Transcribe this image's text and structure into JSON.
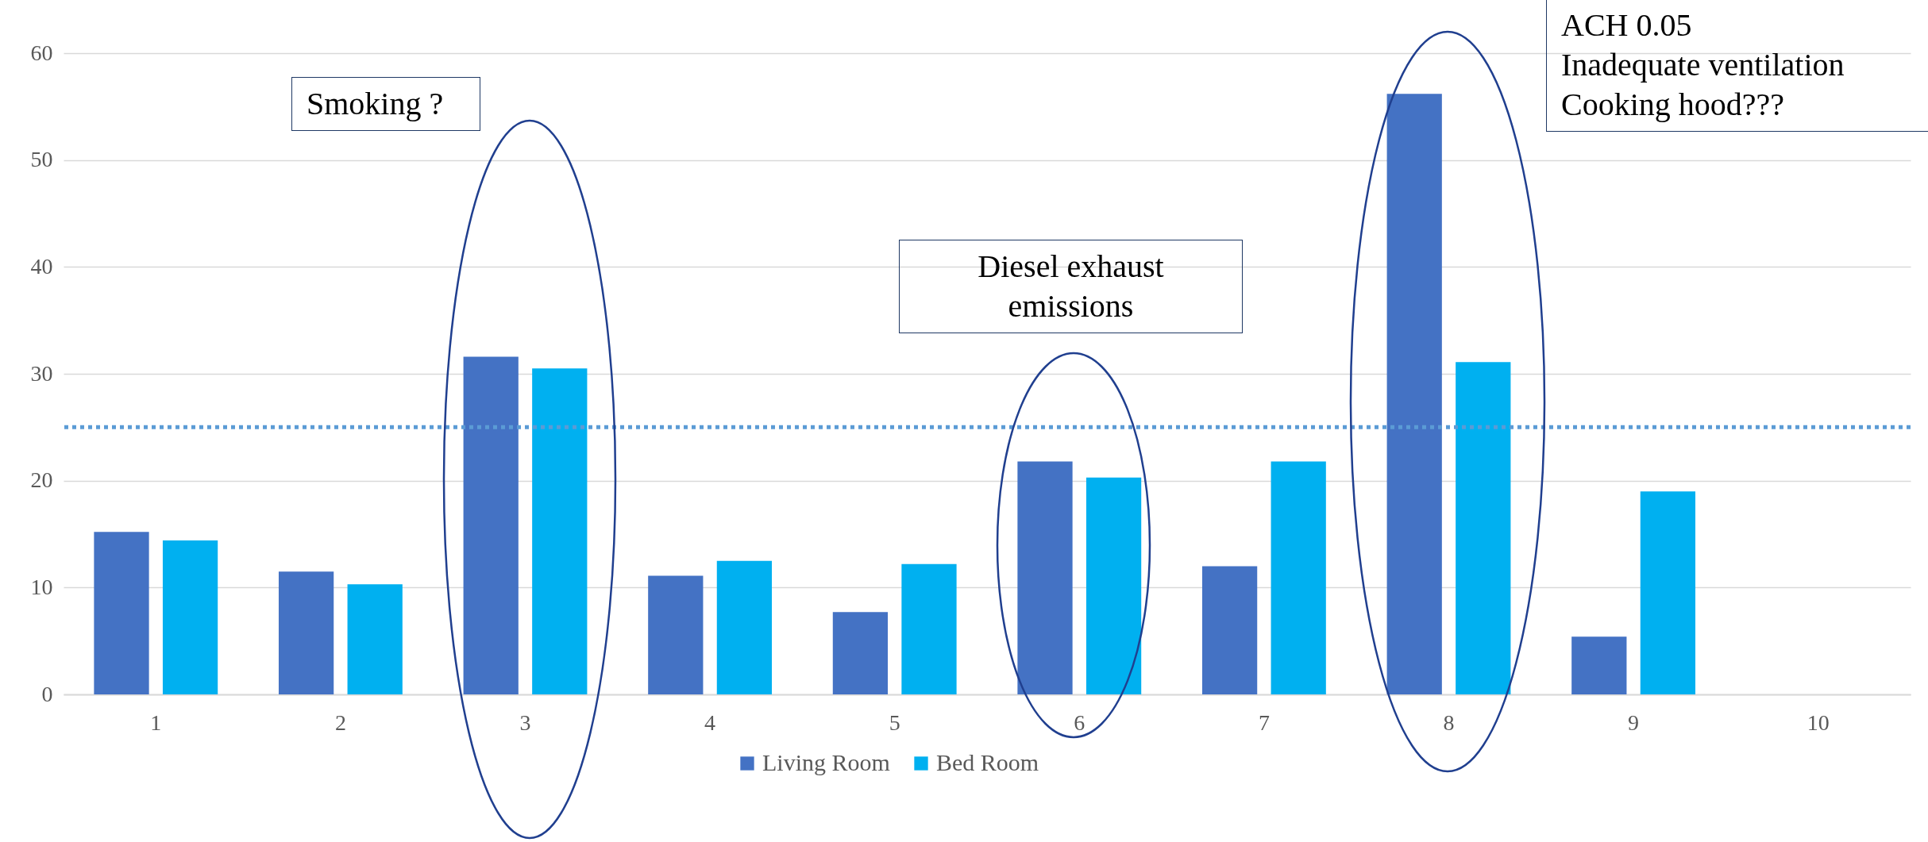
{
  "chart_data": {
    "type": "bar",
    "categories": [
      "1",
      "2",
      "3",
      "4",
      "5",
      "6",
      "7",
      "8",
      "9",
      "10"
    ],
    "series": [
      {
        "name": "Living Room",
        "color": "#4472c4",
        "values": [
          15.2,
          11.5,
          31.6,
          11.1,
          7.7,
          21.8,
          12.0,
          56.2,
          5.4,
          null
        ]
      },
      {
        "name": "Bed Room",
        "color": "#00b0f0",
        "values": [
          14.4,
          10.3,
          30.5,
          12.5,
          12.2,
          20.3,
          21.8,
          31.1,
          19.0,
          null
        ]
      }
    ],
    "ylim": [
      0,
      60
    ],
    "yticks": [
      0,
      10,
      20,
      30,
      40,
      50,
      60
    ],
    "grid": "y",
    "legend": "bottom",
    "ref_lines": [
      {
        "axis": "y",
        "value": 25,
        "color": "#5b9bd5",
        "line_style": "dotted"
      }
    ],
    "annotations": [
      "Smoking ?",
      "Diesel exhaust emissions",
      "ACH 0.05\nInadequate ventilation\nCooking hood???"
    ]
  }
}
